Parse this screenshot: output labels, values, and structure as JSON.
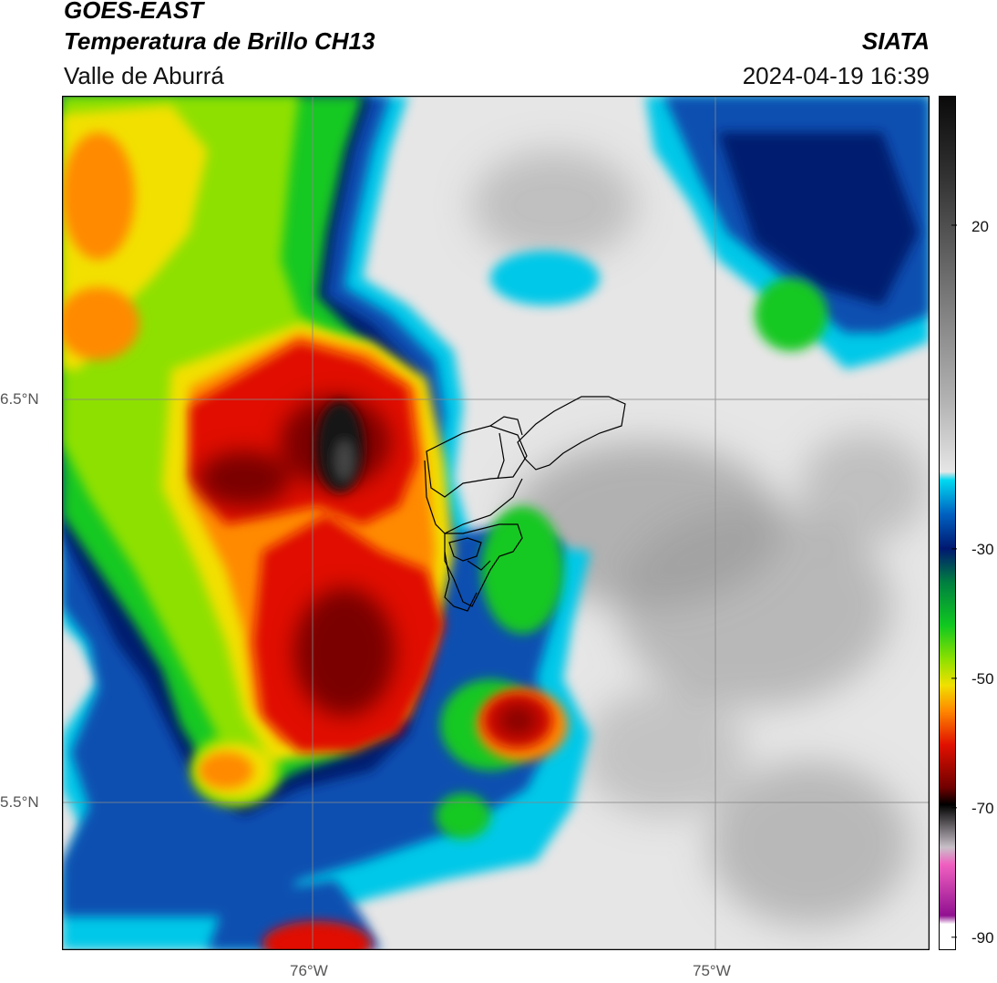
{
  "header": {
    "satellite": "GOES-EAST",
    "product": "Temperatura de Brillo CH13",
    "region": "Valle de Aburrá",
    "organization": "SIATA",
    "timestamp": "2024-04-19 16:39"
  },
  "map": {
    "lat_labels": [
      "6.5°N",
      "5.5°N"
    ],
    "lon_labels": [
      "76°W",
      "75°W"
    ],
    "palette": {
      "clear_light": "#e8e8e8",
      "clear_dark": "#8a8a8a",
      "cyan": "#00c8e8",
      "blue": "#0050b0",
      "navy": "#001a70",
      "green": "#10c820",
      "lime": "#90e000",
      "yellow": "#f0e000",
      "orange": "#ff8800",
      "red": "#e01000",
      "darkred": "#7a0000",
      "black": "#151515",
      "border_color": "#000000",
      "gridline": "#888888"
    }
  },
  "colorbar": {
    "ticks": [
      "20",
      "-30",
      "-50",
      "-70",
      "-90"
    ],
    "tick_values": [
      20,
      -30,
      -50,
      -70,
      -90
    ],
    "range": [
      -92,
      40
    ]
  }
}
